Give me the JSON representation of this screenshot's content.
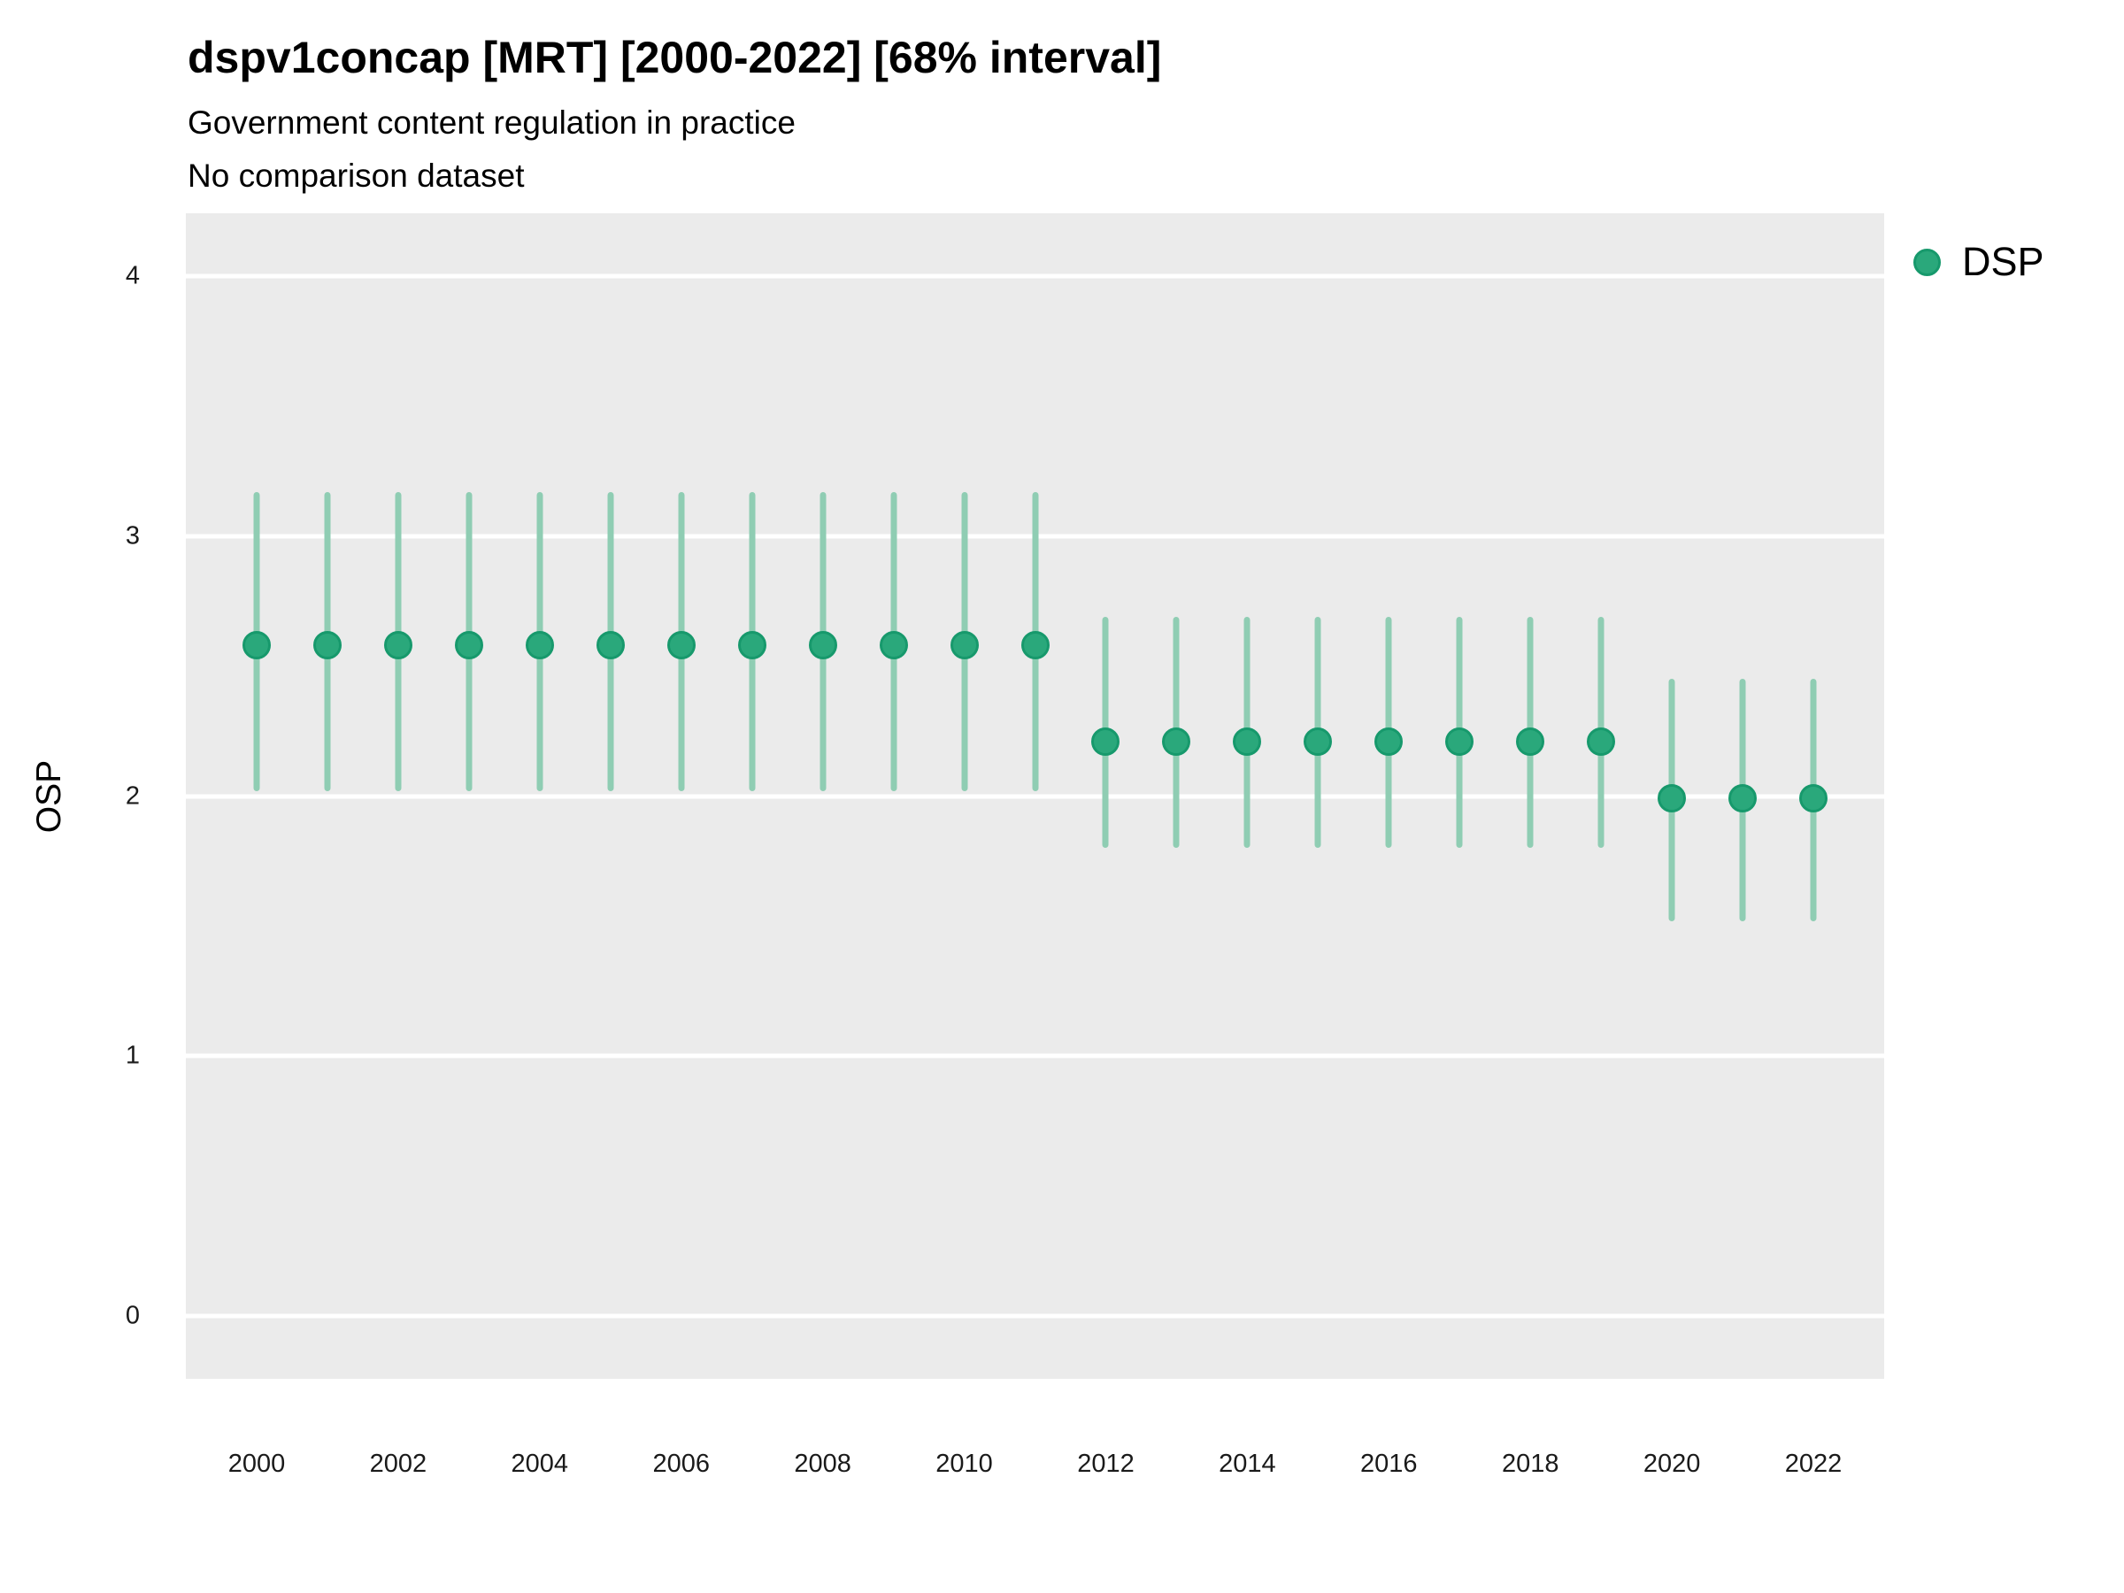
{
  "header": {
    "title": "dspv1concap [MRT] [2000-2022] [68% interval]",
    "subtitle": "Government content regulation in practice",
    "note": "No comparison dataset"
  },
  "legend": {
    "label": "DSP"
  },
  "colors": {
    "point_fill": "#2aa87b",
    "point_stroke": "#17996c",
    "interval_line": "#8fcdb3",
    "panel_bg": "#ebebeb",
    "gridline": "#ffffff",
    "tick_text": "#1a1a1a",
    "text": "#000000"
  },
  "chart_data": {
    "type": "pointrange",
    "title": "dspv1concap [MRT] [2000-2022] [68% interval]",
    "subtitle": "Government content regulation in practice",
    "note": "No comparison dataset",
    "ylabel": "OSP",
    "interval_label": "68% interval",
    "x": [
      2000,
      2001,
      2002,
      2003,
      2004,
      2005,
      2006,
      2007,
      2008,
      2009,
      2010,
      2011,
      2012,
      2013,
      2014,
      2015,
      2016,
      2017,
      2018,
      2019,
      2020,
      2021,
      2022
    ],
    "series": [
      {
        "name": "DSP",
        "center": [
          2.58,
          2.58,
          2.58,
          2.58,
          2.58,
          2.58,
          2.58,
          2.58,
          2.58,
          2.58,
          2.58,
          2.58,
          2.21,
          2.21,
          2.21,
          2.21,
          2.21,
          2.21,
          2.21,
          2.21,
          1.99,
          1.99,
          1.99
        ],
        "lo": [
          2.02,
          2.02,
          2.02,
          2.02,
          2.02,
          2.02,
          2.02,
          2.02,
          2.02,
          2.02,
          2.02,
          2.02,
          1.8,
          1.8,
          1.8,
          1.8,
          1.8,
          1.8,
          1.8,
          1.8,
          1.52,
          1.52,
          1.52
        ],
        "hi": [
          3.17,
          3.17,
          3.17,
          3.17,
          3.17,
          3.17,
          3.17,
          3.17,
          3.17,
          3.17,
          3.17,
          3.17,
          2.69,
          2.69,
          2.69,
          2.69,
          2.69,
          2.69,
          2.69,
          2.69,
          2.45,
          2.45,
          2.45
        ]
      }
    ],
    "y_ticks": [
      0,
      1,
      2,
      3,
      4
    ],
    "y_tick_labels": [
      "0",
      "1",
      "2",
      "3",
      "4"
    ],
    "x_tick_labels": [
      "2000",
      "2002",
      "2004",
      "2006",
      "2008",
      "2010",
      "2012",
      "2014",
      "2016",
      "2018",
      "2020",
      "2022"
    ],
    "ylim": [
      0,
      4
    ],
    "panel_domain_y": [
      -0.24,
      4.24
    ],
    "grid": "horizontal-major-only",
    "legend_position": "top-right-outside"
  }
}
